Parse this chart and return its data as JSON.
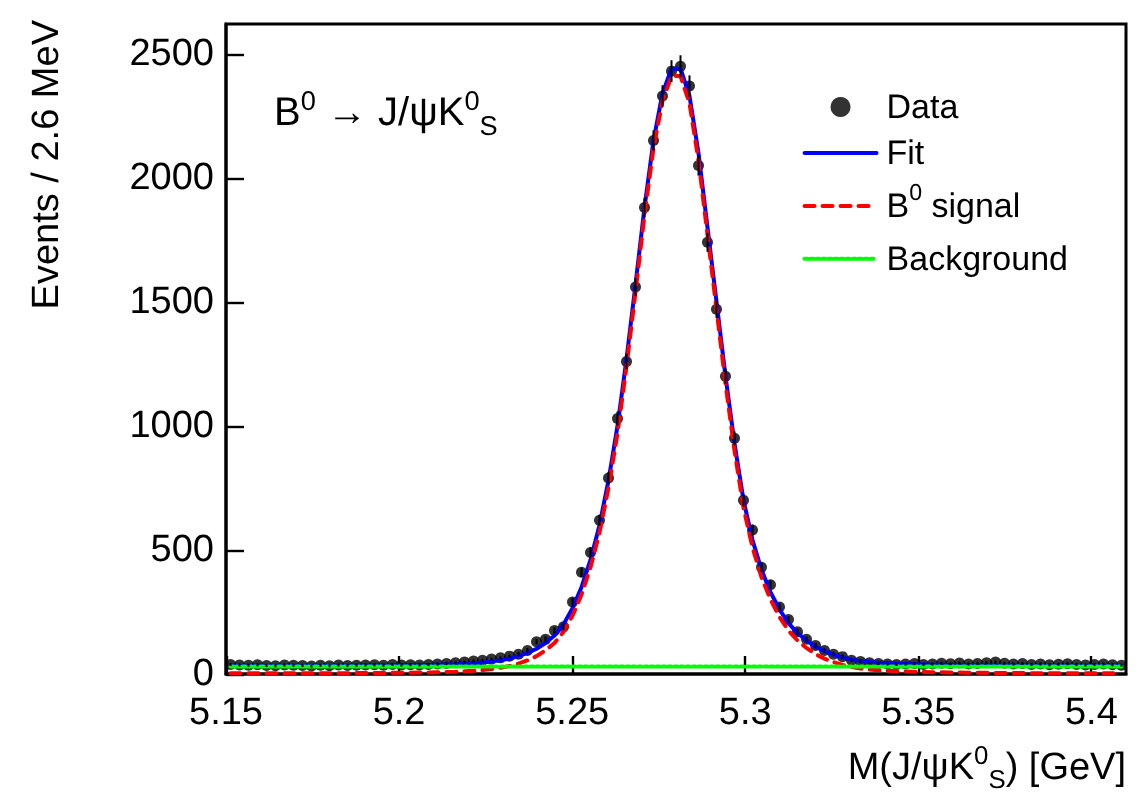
{
  "chart_data": {
    "type": "scatter",
    "annotations": [
      "B$^{0}$ → J/ψK$^{0}$$_{S}$"
    ],
    "xlabel": "M(J/ψK$^{0}$$_{S}$) [GeV]",
    "ylabel": "Events / 2.6 MeV",
    "x": [
      5.1513,
      5.1539,
      5.1565,
      5.1591,
      5.1617,
      5.1643,
      5.1669,
      5.1695,
      5.1721,
      5.1747,
      5.1773,
      5.1799,
      5.1825,
      5.1851,
      5.1877,
      5.1903,
      5.1929,
      5.1955,
      5.1981,
      5.2007,
      5.2033,
      5.2059,
      5.2085,
      5.2111,
      5.2137,
      5.2163,
      5.2189,
      5.2215,
      5.2241,
      5.2267,
      5.2293,
      5.2319,
      5.2345,
      5.2371,
      5.2397,
      5.2423,
      5.2449,
      5.2475,
      5.2501,
      5.2527,
      5.2553,
      5.2579,
      5.2605,
      5.2631,
      5.2657,
      5.2683,
      5.2709,
      5.2735,
      5.2761,
      5.2787,
      5.2813,
      5.2839,
      5.2865,
      5.2891,
      5.2917,
      5.2943,
      5.2969,
      5.2995,
      5.3021,
      5.3047,
      5.3073,
      5.3099,
      5.3125,
      5.3151,
      5.3177,
      5.3203,
      5.3229,
      5.3255,
      5.3281,
      5.3307,
      5.3333,
      5.3359,
      5.3385,
      5.3411,
      5.3437,
      5.3463,
      5.3489,
      5.3515,
      5.3541,
      5.3567,
      5.3593,
      5.3619,
      5.3645,
      5.3671,
      5.3697,
      5.3723,
      5.3749,
      5.3775,
      5.3801,
      5.3827,
      5.3853,
      5.3879,
      5.3905,
      5.3931,
      5.3957,
      5.3983,
      5.4009,
      5.4035,
      5.4061,
      5.4087
    ],
    "series": [
      {
        "name": "Data",
        "type": "scatter",
        "color": "#000000",
        "marker": "circle",
        "values": [
          38,
          36,
          35,
          37,
          34,
          33,
          36,
          35,
          34,
          32,
          35,
          33,
          36,
          34,
          35,
          36,
          37,
          35,
          38,
          36,
          37,
          36,
          38,
          40,
          42,
          45,
          48,
          52,
          55,
          60,
          65,
          72,
          80,
          95,
          130,
          140,
          175,
          190,
          290,
          410,
          490,
          620,
          790,
          1030,
          1260,
          1560,
          1880,
          2150,
          2330,
          2430,
          2450,
          2370,
          2050,
          1740,
          1470,
          1200,
          950,
          700,
          580,
          430,
          360,
          270,
          220,
          170,
          140,
          115,
          95,
          80,
          70,
          55,
          50,
          45,
          42,
          40,
          38,
          40,
          42,
          38,
          40,
          43,
          41,
          44,
          40,
          42,
          45,
          48,
          43,
          40,
          42,
          38,
          40,
          37,
          39,
          41,
          38,
          36,
          38,
          40,
          37,
          35
        ],
        "errors": [
          6,
          6,
          6,
          6,
          6,
          6,
          6,
          6,
          6,
          6,
          6,
          6,
          6,
          6,
          6,
          6,
          6,
          6,
          6,
          6,
          6,
          6,
          6,
          6,
          6,
          6,
          6,
          6,
          6,
          6,
          6,
          6,
          9,
          10,
          11,
          12,
          13,
          14,
          17,
          19,
          21,
          22,
          25,
          28,
          31,
          35,
          39,
          41,
          43,
          44,
          44,
          43,
          41,
          38,
          35,
          31,
          28,
          24,
          22,
          19,
          17,
          15,
          13,
          12,
          11,
          10,
          9,
          8,
          8,
          7,
          7,
          6,
          6,
          6,
          6,
          6,
          6,
          6,
          6,
          6,
          6,
          6,
          6,
          6,
          6,
          6,
          6,
          6,
          6,
          6,
          6,
          6,
          6,
          6,
          6,
          6,
          6,
          6,
          6,
          6
        ]
      },
      {
        "name": "Fit",
        "type": "line",
        "color": "#0000ff",
        "line_style": "solid",
        "values": [
          33,
          33,
          33,
          33,
          33,
          33,
          33,
          33,
          33,
          33,
          33,
          33,
          33,
          33,
          34,
          34,
          34,
          34,
          35,
          35,
          35,
          36,
          36,
          37,
          38,
          39,
          41,
          43,
          46,
          50,
          55,
          62,
          72,
          85,
          102,
          125,
          155,
          200,
          265,
          350,
          460,
          600,
          780,
          1000,
          1270,
          1570,
          1880,
          2150,
          2340,
          2440,
          2440,
          2330,
          2100,
          1800,
          1500,
          1200,
          930,
          700,
          540,
          420,
          330,
          260,
          205,
          165,
          135,
          110,
          92,
          78,
          67,
          58,
          52,
          48,
          45,
          43,
          41,
          40,
          39,
          38,
          37,
          37,
          36,
          36,
          35,
          35,
          35,
          34,
          34,
          34,
          34,
          33,
          33,
          33,
          33,
          33,
          33,
          33,
          33,
          33,
          33,
          33
        ]
      },
      {
        "name": "B$^{0}$ signal",
        "type": "line",
        "color": "#ff0000",
        "line_style": "dashed",
        "values": [
          3,
          3,
          3,
          3,
          3,
          3,
          3,
          3,
          3,
          3,
          3,
          3,
          3,
          3,
          4,
          4,
          4,
          4,
          5,
          5,
          5,
          6,
          6,
          7,
          8,
          9,
          11,
          13,
          16,
          20,
          25,
          32,
          42,
          55,
          72,
          95,
          125,
          170,
          235,
          320,
          430,
          570,
          750,
          970,
          1240,
          1540,
          1850,
          2120,
          2310,
          2410,
          2410,
          2300,
          2070,
          1770,
          1470,
          1170,
          900,
          670,
          510,
          390,
          300,
          230,
          175,
          135,
          105,
          80,
          62,
          48,
          37,
          28,
          22,
          18,
          15,
          13,
          11,
          10,
          9,
          8,
          7,
          7,
          6,
          6,
          5,
          5,
          5,
          4,
          4,
          4,
          4,
          3,
          3,
          3,
          3,
          3,
          3,
          3,
          3,
          3,
          3,
          3
        ]
      },
      {
        "name": "Background",
        "type": "line",
        "color": "#00ff00",
        "line_style": "dotted",
        "values": [
          30,
          30,
          30,
          30,
          30,
          30,
          30,
          30,
          30,
          30,
          30,
          30,
          30,
          30,
          30,
          30,
          30,
          30,
          30,
          30,
          30,
          30,
          30,
          30,
          30,
          30,
          30,
          30,
          30,
          30,
          30,
          30,
          30,
          30,
          30,
          30,
          30,
          30,
          30,
          30,
          30,
          30,
          30,
          30,
          30,
          30,
          30,
          30,
          30,
          30,
          30,
          30,
          30,
          30,
          30,
          30,
          30,
          30,
          30,
          30,
          30,
          30,
          30,
          30,
          30,
          30,
          30,
          30,
          30,
          30,
          30,
          30,
          30,
          30,
          30,
          30,
          30,
          30,
          30,
          30,
          30,
          30,
          30,
          30,
          30,
          30,
          30,
          30,
          30,
          30,
          30,
          30,
          30,
          30,
          30,
          30,
          30,
          30,
          30,
          30
        ]
      }
    ],
    "xlim": [
      5.15,
      5.41
    ],
    "xticks": [
      5.15,
      5.2,
      5.25,
      5.3,
      5.35,
      5.4
    ],
    "ylim": [
      0,
      2620
    ],
    "yticks": [
      0,
      500,
      1000,
      1500,
      2000,
      2500
    ],
    "legend": "top right"
  }
}
